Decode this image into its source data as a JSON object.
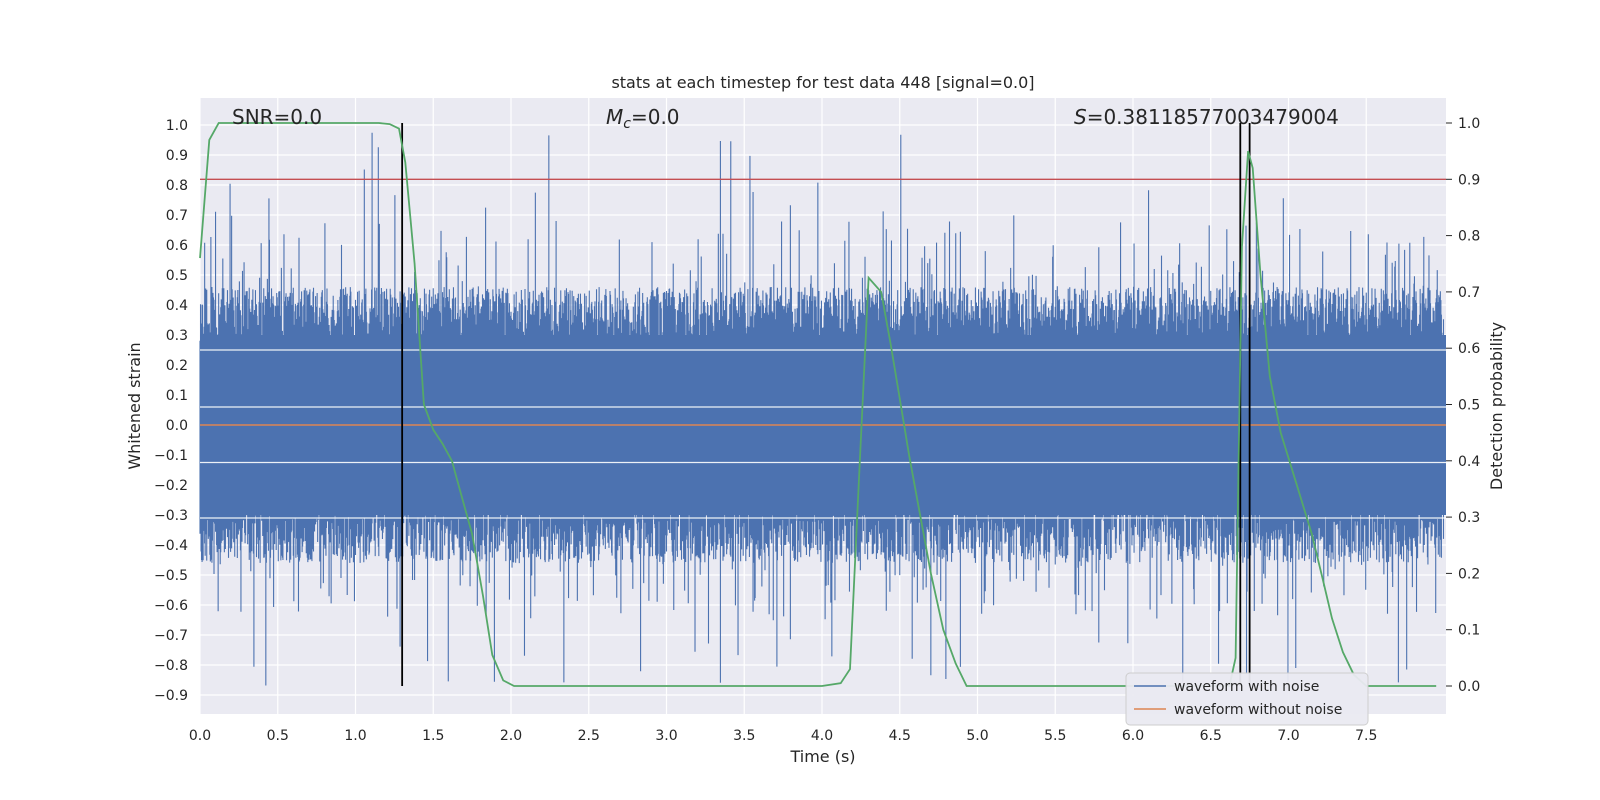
{
  "chart_data": {
    "type": "line",
    "title": "stats at each timestep for test data 448 [signal=0.0]",
    "xlabel": "Time (s)",
    "ylabel_left": "Whitened strain",
    "ylabel_right": "Detection probability",
    "xlim": [
      0.0,
      8.0
    ],
    "ylim_left": [
      -0.95,
      1.08
    ],
    "ylim_right": [
      -0.05,
      1.04
    ],
    "x_ticks": [
      "0.0",
      "0.5",
      "1.0",
      "1.5",
      "2.0",
      "2.5",
      "3.0",
      "3.5",
      "4.0",
      "4.5",
      "5.0",
      "5.5",
      "6.0",
      "6.5",
      "7.0",
      "7.5"
    ],
    "y_ticks_left": [
      "-0.9",
      "-0.8",
      "-0.7",
      "-0.6",
      "-0.5",
      "-0.4",
      "-0.3",
      "-0.2",
      "-0.1",
      "0.0",
      "0.1",
      "0.2",
      "0.3",
      "0.4",
      "0.5",
      "0.6",
      "0.7",
      "0.8",
      "0.9",
      "1.0"
    ],
    "y_ticks_right": [
      "0.0",
      "0.1",
      "0.2",
      "0.3",
      "0.4",
      "0.5",
      "0.6",
      "0.7",
      "0.8",
      "0.9",
      "1.0"
    ],
    "annotations": {
      "snr": "SNR=0.0",
      "mc_symbol": "M",
      "mc_sub": "c",
      "mc_value": "=0.0",
      "s_symbol": "S",
      "s_value": "=0.3811857700347900 4"
    },
    "threshold": {
      "value": 0.9,
      "axis": "right",
      "color": "#c44e52"
    },
    "vlines": [
      1.3,
      6.69,
      6.75
    ],
    "series": [
      {
        "name": "waveform with noise",
        "color": "#4c72b0",
        "kind": "noise",
        "amplitude_typical": 0.45,
        "amplitude_peak": 0.99
      },
      {
        "name": "waveform without noise",
        "color": "#dd8452",
        "kind": "flat",
        "value": 0.0
      },
      {
        "name": "detection probability",
        "color": "#55a868",
        "axis": "right",
        "x": [
          0.0,
          0.06,
          0.12,
          0.2,
          0.4,
          0.6,
          0.8,
          1.0,
          1.15,
          1.22,
          1.28,
          1.32,
          1.38,
          1.44,
          1.5,
          1.56,
          1.62,
          1.68,
          1.75,
          1.82,
          1.88,
          1.95,
          2.02,
          2.1,
          2.5,
          3.0,
          3.5,
          3.7,
          4.0,
          4.12,
          4.18,
          4.24,
          4.3,
          4.38,
          4.44,
          4.5,
          4.56,
          4.62,
          4.7,
          4.78,
          4.86,
          4.93,
          5.0,
          5.5,
          6.0,
          6.4,
          6.55,
          6.62,
          6.66,
          6.7,
          6.74,
          6.77,
          6.82,
          6.88,
          6.95,
          7.05,
          7.15,
          7.22,
          7.28,
          7.35,
          7.42,
          7.5,
          7.6,
          7.75,
          7.95
        ],
        "y": [
          0.76,
          0.97,
          1.0,
          1.0,
          1.0,
          1.0,
          1.0,
          1.0,
          1.0,
          0.998,
          0.99,
          0.93,
          0.75,
          0.5,
          0.455,
          0.43,
          0.4,
          0.34,
          0.27,
          0.16,
          0.055,
          0.01,
          0.0,
          0.0,
          0.0,
          0.0,
          0.0,
          0.0,
          0.0,
          0.005,
          0.03,
          0.38,
          0.725,
          0.7,
          0.61,
          0.51,
          0.41,
          0.32,
          0.2,
          0.1,
          0.04,
          0.0,
          0.0,
          0.0,
          0.0,
          0.0,
          0.0,
          0.0,
          0.05,
          0.78,
          0.95,
          0.92,
          0.73,
          0.55,
          0.45,
          0.36,
          0.27,
          0.19,
          0.12,
          0.06,
          0.02,
          0.0,
          0.0,
          0.0,
          0.0
        ]
      }
    ],
    "legend": {
      "position": "lower-right",
      "entries": [
        "waveform with noise",
        "waveform without noise"
      ]
    },
    "style": {
      "plot_bg": "#eaeaf2",
      "grid": true,
      "grid_color": "#ffffff"
    }
  }
}
